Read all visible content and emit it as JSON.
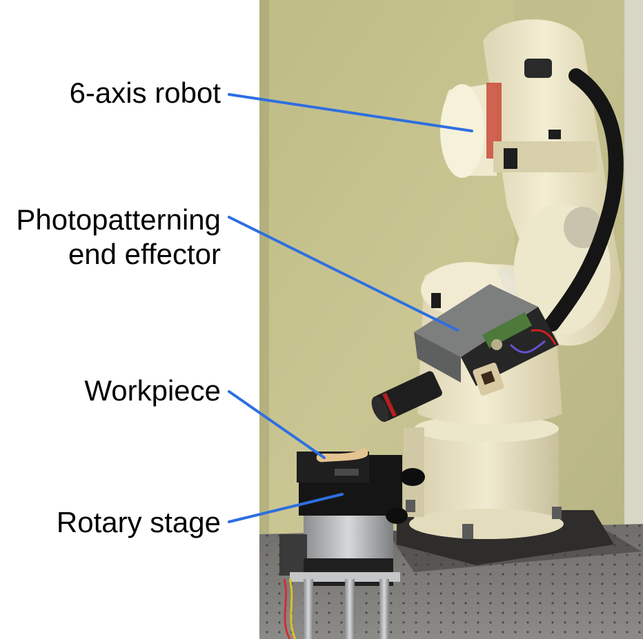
{
  "figure": {
    "labels": {
      "robot": "6-axis robot",
      "effector_line1": "Photopatterning",
      "effector_line2": "end effector",
      "workpiece": "Workpiece",
      "stage": "Rotary stage"
    },
    "colors": {
      "callout_line": "#2e6fe0",
      "wall": "#c5c08c",
      "robot_body": "#ede6c8",
      "table": "#7d7c79"
    }
  }
}
